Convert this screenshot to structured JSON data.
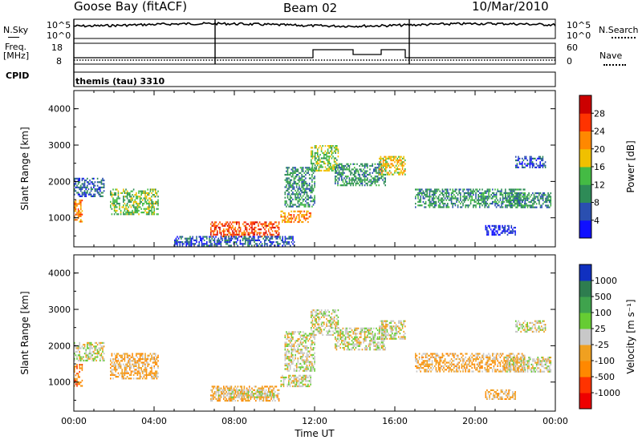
{
  "header": {
    "station": "Goose Bay (fitACF)",
    "beam": "Beam 02",
    "date": "10/Mar/2010"
  },
  "top_panels": {
    "nsky_label": "N.Sky",
    "nsearch_label": "N.Search",
    "nsky_ticks": [
      "10^5",
      "10^0"
    ],
    "freq_label_1": "Freq.",
    "freq_label_2": "[MHz]",
    "freq_ticks": [
      "18",
      "8"
    ],
    "nave_label": "Nave",
    "nave_ticks": [
      "60",
      "0"
    ],
    "cpid_label": "CPID",
    "cpid_value": "themis (tau) 3310"
  },
  "chart_data": [
    {
      "type": "heatmap",
      "panel": "power",
      "xlabel": "",
      "ylabel": "Slant Range [km]",
      "xlim": [
        0,
        24
      ],
      "ylim": [
        200,
        4500
      ],
      "yticks": [
        "1000",
        "2000",
        "3000",
        "4000"
      ],
      "colorbar": {
        "label": "Power [dB]",
        "ticks": [
          "4",
          "8",
          "12",
          "16",
          "20",
          "24",
          "28"
        ],
        "colors": [
          "#1010ff",
          "#2a4fb0",
          "#2e8b57",
          "#44bb44",
          "#f0c000",
          "#ff8800",
          "#ff3300",
          "#cc0000"
        ]
      },
      "regions": [
        {
          "t0": 0.0,
          "t1": 0.4,
          "r0": 900,
          "r1": 1500,
          "level": 5
        },
        {
          "t0": 0.0,
          "t1": 1.5,
          "r0": 1600,
          "r1": 2100,
          "level": 1
        },
        {
          "t0": 1.8,
          "t1": 4.2,
          "r0": 1100,
          "r1": 1800,
          "level": 3
        },
        {
          "t0": 6.8,
          "t1": 10.2,
          "r0": 500,
          "r1": 900,
          "level": 6
        },
        {
          "t0": 5.0,
          "t1": 11.0,
          "r0": 250,
          "r1": 500,
          "level": 1
        },
        {
          "t0": 10.3,
          "t1": 11.8,
          "r0": 900,
          "r1": 1200,
          "level": 5
        },
        {
          "t0": 10.5,
          "t1": 12.0,
          "r0": 1300,
          "r1": 2400,
          "level": 2
        },
        {
          "t0": 11.8,
          "t1": 13.2,
          "r0": 2300,
          "r1": 3000,
          "level": 3
        },
        {
          "t0": 13.0,
          "t1": 15.5,
          "r0": 1900,
          "r1": 2500,
          "level": 2
        },
        {
          "t0": 15.2,
          "t1": 16.5,
          "r0": 2200,
          "r1": 2700,
          "level": 4
        },
        {
          "t0": 17.0,
          "t1": 22.5,
          "r0": 1300,
          "r1": 1800,
          "level": 2
        },
        {
          "t0": 21.5,
          "t1": 23.8,
          "r0": 1300,
          "r1": 1700,
          "level": 2
        },
        {
          "t0": 22.0,
          "t1": 23.5,
          "r0": 2400,
          "r1": 2700,
          "level": 1
        },
        {
          "t0": 20.5,
          "t1": 22.0,
          "r0": 550,
          "r1": 800,
          "level": 0
        }
      ]
    },
    {
      "type": "heatmap",
      "panel": "velocity",
      "xlabel": "Time UT",
      "ylabel": "Slant Range [km]",
      "xlim": [
        0,
        24
      ],
      "ylim": [
        200,
        4500
      ],
      "xticks": [
        "00:00",
        "04:00",
        "08:00",
        "12:00",
        "16:00",
        "20:00",
        "00:00"
      ],
      "yticks": [
        "1000",
        "2000",
        "3000",
        "4000"
      ],
      "colorbar": {
        "label": "Velocity [m s⁻¹]",
        "ticks": [
          "1000",
          "500",
          "100",
          "25",
          "-25",
          "-100",
          "-500",
          "-1000"
        ],
        "colors": [
          "#1030c0",
          "#2e7d4f",
          "#3fa34d",
          "#66cc33",
          "#c8c8c8",
          "#f0a020",
          "#ff8800",
          "#ff3300",
          "#ee0000"
        ]
      },
      "regions": [
        {
          "t0": 0.0,
          "t1": 0.4,
          "r0": 900,
          "r1": 1500,
          "level": 6
        },
        {
          "t0": 0.0,
          "t1": 1.5,
          "r0": 1600,
          "r1": 2100,
          "level": 4
        },
        {
          "t0": 1.8,
          "t1": 4.2,
          "r0": 1100,
          "r1": 1800,
          "level": 5
        },
        {
          "t0": 6.8,
          "t1": 10.2,
          "r0": 500,
          "r1": 900,
          "level": 5
        },
        {
          "t0": 7.0,
          "t1": 10.0,
          "r0": 600,
          "r1": 800,
          "level": 4
        },
        {
          "t0": 10.3,
          "t1": 11.8,
          "r0": 900,
          "r1": 1200,
          "level": 4
        },
        {
          "t0": 10.5,
          "t1": 12.0,
          "r0": 1300,
          "r1": 2400,
          "level": 4
        },
        {
          "t0": 11.8,
          "t1": 13.2,
          "r0": 2300,
          "r1": 3000,
          "level": 4
        },
        {
          "t0": 13.0,
          "t1": 15.5,
          "r0": 1900,
          "r1": 2500,
          "level": 4
        },
        {
          "t0": 15.2,
          "t1": 16.5,
          "r0": 2200,
          "r1": 2700,
          "level": 4
        },
        {
          "t0": 17.0,
          "t1": 22.5,
          "r0": 1300,
          "r1": 1800,
          "level": 5
        },
        {
          "t0": 21.5,
          "t1": 23.8,
          "r0": 1300,
          "r1": 1700,
          "level": 4
        },
        {
          "t0": 22.0,
          "t1": 23.5,
          "r0": 2400,
          "r1": 2700,
          "level": 4
        },
        {
          "t0": 20.5,
          "t1": 22.0,
          "r0": 550,
          "r1": 800,
          "level": 5
        }
      ]
    }
  ]
}
